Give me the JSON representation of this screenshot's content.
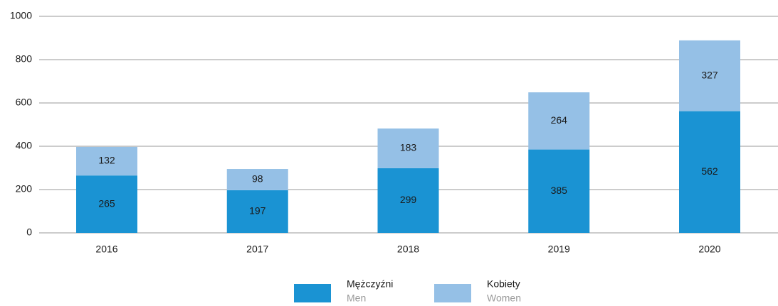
{
  "chart_data": {
    "type": "stacked_bar",
    "categories": [
      "2016",
      "2017",
      "2018",
      "2019",
      "2020"
    ],
    "series": [
      {
        "name": "Mężczyźni",
        "name_en": "Men",
        "color": "#1a93d3",
        "values": [
          265,
          197,
          299,
          385,
          562
        ]
      },
      {
        "name": "Kobiety",
        "name_en": "Women",
        "color": "#95c0e6",
        "values": [
          132,
          98,
          183,
          264,
          327
        ]
      }
    ],
    "ylim": [
      0,
      1000
    ],
    "yticks": [
      0,
      200,
      400,
      600,
      800,
      1000
    ],
    "grid": true
  }
}
